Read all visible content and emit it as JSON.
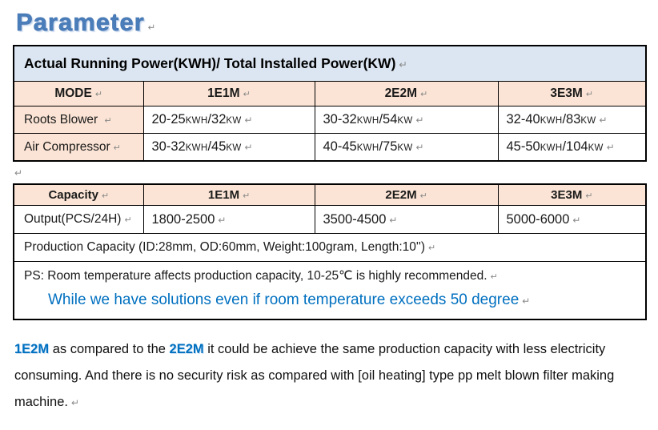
{
  "marks": {
    "pilcrow": "↵"
  },
  "colors": {
    "title_blue": "#4a7ebb",
    "band_blue": "#dce6f2",
    "band_peach": "#fbe4d5",
    "accent_blue": "#0070c0"
  },
  "page": {
    "title": "Parameter"
  },
  "table1": {
    "title": "Actual Running Power(KWH)/ Total Installed Power(KW)",
    "headers": [
      "MODE",
      "1E1M",
      "2E2M",
      "3E3M"
    ],
    "rows": [
      {
        "label": "Roots Blower",
        "values": [
          [
            "20-25",
            "KWH",
            "/32",
            "KW"
          ],
          [
            "30-32",
            "KWH",
            "/54",
            "KW"
          ],
          [
            "32-40",
            "KWH",
            "/83",
            "KW"
          ]
        ]
      },
      {
        "label": "Air Compressor",
        "values": [
          [
            "30-32",
            "KWH",
            "/45",
            "KW"
          ],
          [
            "40-45",
            "KWH",
            "/75",
            "KW"
          ],
          [
            "45-50",
            "KWH",
            "/104",
            "KW"
          ]
        ]
      }
    ]
  },
  "table2": {
    "headers": [
      "Capacity",
      "1E1M",
      "2E2M",
      "3E3M"
    ],
    "output_row": {
      "label": "Output(PCS/24H)",
      "values": [
        "1800-2500",
        "3500-4500",
        "5000-6000"
      ]
    },
    "production_line": "Production Capacity (ID:28mm, OD:60mm, Weight:100gram, Length:10'')",
    "ps_line": "PS: Room temperature affects production capacity, 10-25℃  is highly recommended.",
    "ps_highlight": "While we have solutions even if room temperature exceeds 50 degree"
  },
  "footer": {
    "segments": [
      {
        "text": "1E2M"
      },
      {
        "text": " as compared to the "
      },
      {
        "text": "2E2M"
      },
      {
        "text": " it could be achieve the same production capacity with less electricity consuming. And there is no security risk as compared with [oil heating] type pp melt blown filter making machine."
      }
    ]
  }
}
